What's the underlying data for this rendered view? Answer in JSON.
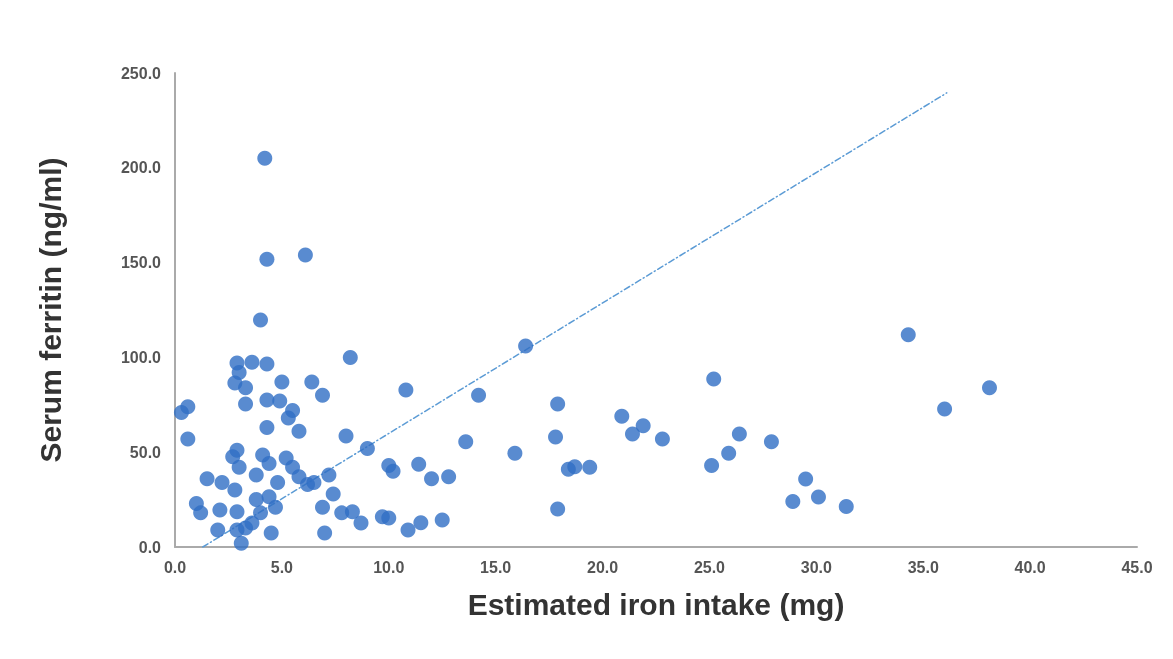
{
  "chart_data": {
    "type": "scatter",
    "xlabel": "Estimated iron intake (mg)",
    "ylabel": "Serum ferritin (ng/ml)",
    "xlim": [
      0,
      45
    ],
    "ylim": [
      0,
      250
    ],
    "xticks": [
      {
        "value": 0,
        "label": "0.0"
      },
      {
        "value": 5,
        "label": "5.0"
      },
      {
        "value": 10,
        "label": "10.0"
      },
      {
        "value": 15,
        "label": "15.0"
      },
      {
        "value": 20,
        "label": "20.0"
      },
      {
        "value": 25,
        "label": "25.0"
      },
      {
        "value": 30,
        "label": "30.0"
      },
      {
        "value": 35,
        "label": "35.0"
      },
      {
        "value": 40,
        "label": "40.0"
      },
      {
        "value": 45,
        "label": "45.0"
      }
    ],
    "yticks": [
      {
        "value": 0,
        "label": "0.0"
      },
      {
        "value": 50,
        "label": "50.0"
      },
      {
        "value": 100,
        "label": "100.0"
      },
      {
        "value": 150,
        "label": "150.0"
      },
      {
        "value": 200,
        "label": "200.0"
      },
      {
        "value": 250,
        "label": "250.0"
      }
    ],
    "grid": false,
    "marker": "circle",
    "series": [
      {
        "color": "#2f6ec4",
        "x": [
          4.3,
          6.1,
          4.0,
          8.2,
          2.9,
          3.6,
          4.3,
          3.0,
          2.8,
          3.3,
          5.0,
          6.4,
          6.9,
          3.3,
          4.3,
          4.9,
          5.5,
          5.3,
          4.3,
          5.8,
          0.3,
          0.6,
          0.6,
          8.0,
          9.0,
          2.9,
          2.7,
          3.0,
          4.1,
          4.4,
          5.2,
          5.5,
          3.8,
          4.8,
          5.8,
          6.2,
          6.5,
          1.5,
          2.2,
          2.8,
          7.2,
          7.4,
          1.0,
          1.2,
          2.1,
          2.9,
          3.8,
          4.4,
          4.7,
          4.0,
          3.6,
          3.3,
          2.9,
          3.1,
          2.0,
          4.5,
          6.9,
          7.0,
          7.8,
          8.3,
          8.7,
          9.7,
          10.0,
          10.0,
          10.2,
          4.2,
          16.4,
          10.8,
          14.2,
          13.6,
          17.9,
          17.8,
          15.9,
          18.4,
          18.7,
          19.4,
          17.9,
          20.9,
          21.9,
          21.4,
          22.8,
          25.2,
          26.4,
          25.9,
          25.1,
          27.9,
          11.4,
          12.0,
          12.8,
          11.5,
          10.9,
          12.5,
          34.3,
          38.1,
          36.0,
          29.5,
          28.9,
          30.1,
          31.4
        ],
        "values": [
          151.8,
          154,
          119.7,
          100,
          97,
          97.5,
          96.5,
          92,
          86.5,
          84,
          87,
          87,
          80,
          75.4,
          77.5,
          77,
          72,
          68,
          63,
          61,
          71,
          74,
          57,
          58.5,
          52,
          51,
          47.6,
          42,
          48.5,
          44,
          47,
          42,
          38,
          34,
          37,
          33,
          34,
          36,
          34,
          30,
          38,
          28,
          23,
          18,
          19.5,
          18.6,
          25,
          26.5,
          21,
          18,
          12.6,
          10,
          9,
          2,
          9,
          7.4,
          21,
          7.4,
          18,
          18.6,
          12.6,
          16,
          15.3,
          43,
          40,
          205,
          106,
          82.8,
          80,
          55.5,
          75.4,
          58,
          49.5,
          41,
          42.3,
          42,
          20,
          69,
          64,
          59.6,
          57,
          88.6,
          59.6,
          49.5,
          43,
          55.5,
          43.7,
          36,
          37,
          12.8,
          9,
          14.2,
          112,
          84,
          72.8,
          35.9,
          24,
          26.4,
          21.3
        ]
      },
      {
        "type": "line",
        "color": "#5b9bd5",
        "marker": "none",
        "line_style": "dashed",
        "x": [
          1.3,
          36.1
        ],
        "values": [
          0,
          239.5
        ]
      }
    ]
  }
}
